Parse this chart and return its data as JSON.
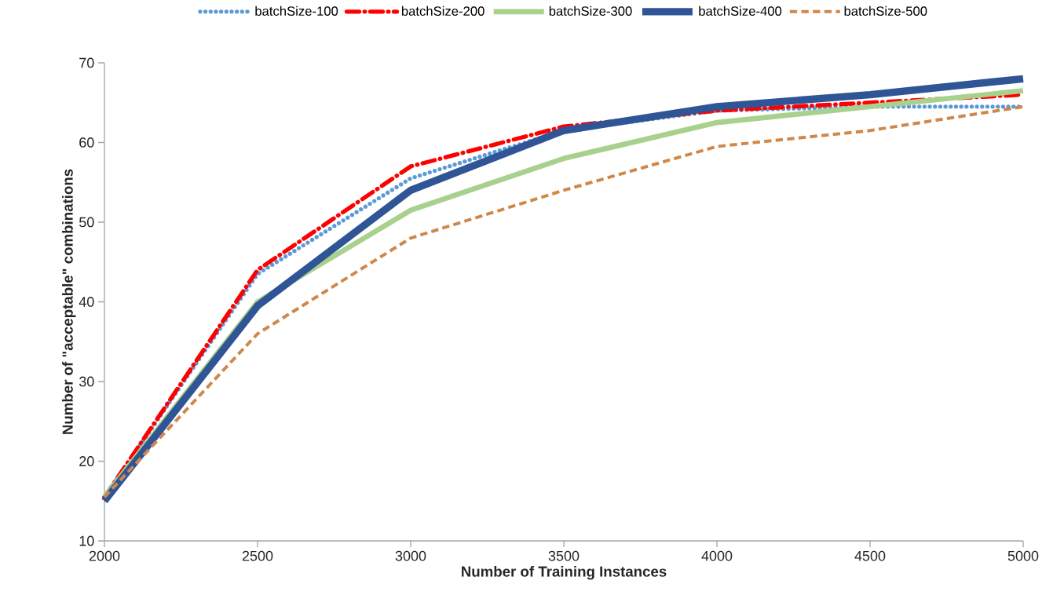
{
  "chart_data": {
    "type": "line",
    "xlabel": "Number of Training Instances",
    "ylabel": "Number of \"acceptable\" combinations",
    "x": [
      2000,
      2500,
      3000,
      3500,
      4000,
      4500,
      5000
    ],
    "xlim": [
      2000,
      5000
    ],
    "xticks": [
      2000,
      2500,
      3000,
      3500,
      4000,
      4500,
      5000
    ],
    "ylim": [
      10,
      70
    ],
    "yticks": [
      10,
      20,
      30,
      40,
      50,
      60,
      70
    ],
    "legend": "top",
    "grid": false,
    "series": [
      {
        "name": "batchSize-100",
        "color": "#5b9bd5",
        "line_style": "dotted",
        "values": [
          15.5,
          43.5,
          55.5,
          61.5,
          64,
          64.5,
          64.5
        ]
      },
      {
        "name": "batchSize-200",
        "color": "#ff0000",
        "line_style": "dashdot",
        "values": [
          15.5,
          44,
          57,
          62,
          64,
          65,
          66
        ]
      },
      {
        "name": "batchSize-300",
        "color": "#a9d18e",
        "line_style": "solid",
        "values": [
          15.5,
          40,
          51.5,
          58,
          62.5,
          64.5,
          66.5
        ]
      },
      {
        "name": "batchSize-400",
        "color": "#2f5597",
        "line_style": "solid",
        "values": [
          15,
          39.5,
          54,
          61.5,
          64.5,
          66,
          68
        ]
      },
      {
        "name": "batchSize-500",
        "color": "#d0884a",
        "line_style": "dashed",
        "values": [
          15.5,
          36,
          48,
          54,
          59.5,
          61.5,
          64.5
        ]
      }
    ]
  }
}
